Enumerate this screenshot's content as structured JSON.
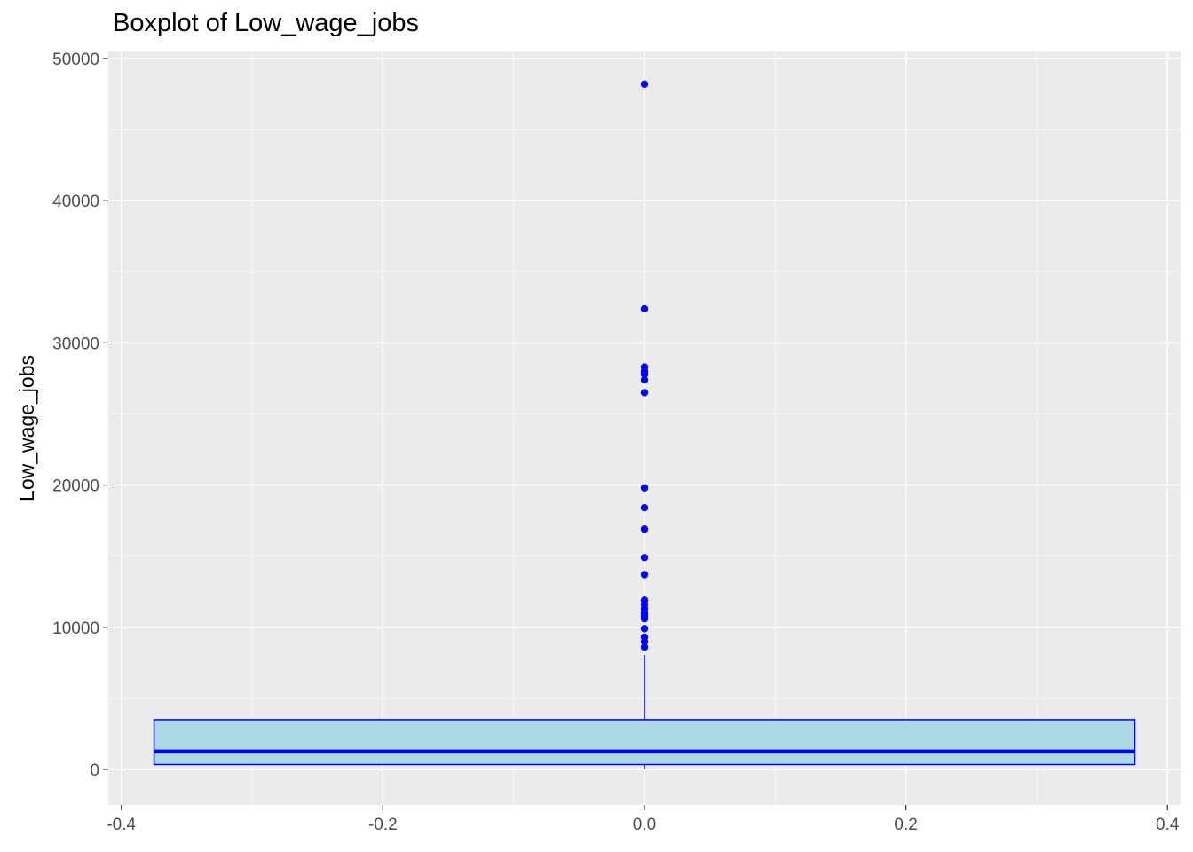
{
  "chart_data": {
    "type": "box",
    "title": "Boxplot of Low_wage_jobs",
    "xlabel": "",
    "ylabel": "Low_wage_jobs",
    "xlim": [
      -0.41,
      0.41
    ],
    "ylim": [
      -2500,
      50500
    ],
    "x_ticks": [
      -0.4,
      -0.2,
      0.0,
      0.2,
      0.4
    ],
    "x_tick_labels": [
      "-0.4",
      "-0.2",
      "0.0",
      "0.2",
      "0.4"
    ],
    "y_ticks": [
      0,
      10000,
      20000,
      30000,
      40000,
      50000
    ],
    "y_tick_labels": [
      "0",
      "10000",
      "20000",
      "30000",
      "40000",
      "50000"
    ],
    "grid": true,
    "box": {
      "x": 0,
      "x_range": [
        -0.375,
        0.375
      ],
      "q1": 340,
      "median": 1250,
      "q3": 3500,
      "whisker_low": 0,
      "whisker_high": 8050,
      "outliers": [
        48200,
        32400,
        28300,
        28000,
        27800,
        27400,
        26500,
        19800,
        18400,
        16900,
        14900,
        13700,
        11900,
        11600,
        11300,
        11000,
        10800,
        10600,
        9900,
        9300,
        9000,
        8600
      ]
    },
    "colors": {
      "box_fill": "#add8e6",
      "box_line": "#0000ff",
      "point": "#0000ff",
      "panel": "#ebebeb",
      "grid": "#ffffff"
    }
  }
}
